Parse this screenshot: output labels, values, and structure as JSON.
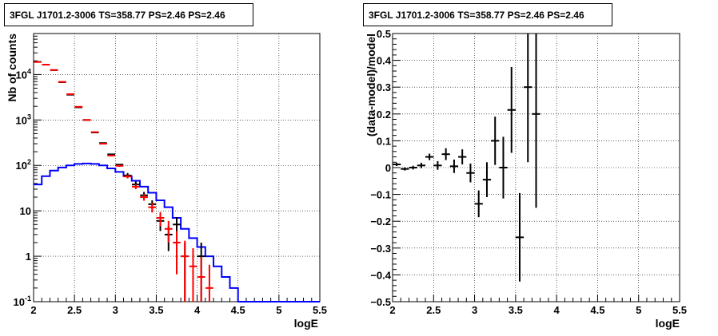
{
  "colors": {
    "data": "#000000",
    "model": "#ff0000",
    "component": "#0000ff",
    "grid": "#000000"
  },
  "chart_data": [
    {
      "type": "histogram",
      "title": "3FGL J1701.2-3006 TS=358.77 PS=2.46 PS=2.46",
      "xlabel": "logE",
      "ylabel": "Nb of counts",
      "xlim": [
        2,
        5.5
      ],
      "ylim": [
        0.1,
        80000
      ],
      "yscale": "log",
      "grid": true,
      "x_ticks": [
        "2",
        "2.5",
        "3",
        "3.5",
        "4",
        "4.5",
        "5",
        "5.5"
      ],
      "y_ticks": [
        {
          "value": 0.1,
          "label": "10^-1"
        },
        {
          "value": 1,
          "label": "1"
        },
        {
          "value": 10,
          "label": "10"
        },
        {
          "value": 100,
          "label": "10^2"
        },
        {
          "value": 1000,
          "label": "10^3"
        },
        {
          "value": 10000,
          "label": "10^4"
        }
      ],
      "bin_width": 0.1,
      "bin_low_edges": [
        2.0,
        2.1,
        2.2,
        2.3,
        2.4,
        2.5,
        2.6,
        2.7,
        2.8,
        2.9,
        3.0,
        3.1,
        3.2,
        3.3,
        3.4,
        3.5,
        3.6,
        3.7,
        3.8,
        3.9,
        4.0,
        4.1,
        4.2,
        4.3,
        4.4,
        4.5,
        4.6,
        4.7,
        4.8,
        4.9,
        5.0,
        5.1,
        5.2,
        5.3,
        5.4
      ],
      "series": [
        {
          "style": "errorbar",
          "color": "#000000",
          "values": [
            19000,
            16500,
            12500,
            6800,
            3600,
            1900,
            1000,
            530,
            310,
            175,
            104,
            60,
            38,
            22,
            14,
            6,
            3,
            5,
            1,
            0,
            1
          ],
          "errors_low": [
            0,
            0,
            0,
            0,
            0,
            0,
            0,
            0,
            0,
            0,
            0,
            8,
            6,
            4,
            3,
            2.4,
            1.7,
            2.2,
            1,
            0,
            1
          ],
          "errors_high": [
            0,
            0,
            0,
            0,
            0,
            0,
            0,
            0,
            0,
            0,
            0,
            8,
            6,
            4,
            3,
            2.4,
            1.7,
            2.2,
            1,
            0,
            1
          ]
        },
        {
          "style": "errorbar",
          "color": "#ff0000",
          "values": [
            18900,
            16500,
            12600,
            6900,
            3700,
            1950,
            1000,
            540,
            300,
            165,
            98,
            57,
            34,
            20,
            12,
            7,
            4,
            2,
            1,
            0.6,
            0.35,
            0.2
          ],
          "errors_low": [
            0,
            0,
            0,
            0,
            0,
            0,
            0,
            0,
            8,
            6,
            5,
            4.5,
            4,
            3.3,
            2.8,
            2.4,
            2,
            1.6,
            0.9,
            0.55,
            0.34,
            0.19
          ],
          "errors_high": [
            0,
            0,
            0,
            0,
            0,
            0,
            0,
            0,
            8,
            6,
            5,
            4.5,
            4,
            3.3,
            2.8,
            2.4,
            2,
            1.6,
            1.2,
            0.9,
            0.6,
            0.45
          ]
        },
        {
          "style": "step",
          "color": "#0000ff",
          "values": [
            38,
            58,
            77,
            90,
            100,
            108,
            110,
            108,
            100,
            86,
            72,
            58,
            46,
            34,
            25,
            17,
            12,
            7,
            4,
            2.5,
            1.6,
            1.0,
            0.6,
            0.35,
            0.2,
            0.1,
            0.1,
            0.1,
            0.1,
            0.1,
            0.1,
            0.1,
            0.1,
            0.1,
            0.1
          ]
        }
      ]
    },
    {
      "type": "scatter",
      "title": "3FGL J1701.2-3006 TS=358.77 PS=2.46 PS=2.46",
      "xlabel": "logE",
      "ylabel": "(data-model)/model",
      "xlim": [
        2,
        5.5
      ],
      "ylim": [
        -0.5,
        0.5
      ],
      "grid": true,
      "x_ticks": [
        "2",
        "2.5",
        "3",
        "3.5",
        "4",
        "4.5",
        "5",
        "5.5"
      ],
      "y_ticks": [
        "−0.5",
        "−0.4",
        "−0.3",
        "−0.2",
        "−0.1",
        "0",
        "0.1",
        "0.2",
        "0.3",
        "0.4",
        "0.5"
      ],
      "x_halfwidth": 0.05,
      "x": [
        2.05,
        2.15,
        2.25,
        2.35,
        2.45,
        2.55,
        2.65,
        2.75,
        2.85,
        2.95,
        3.05,
        3.15,
        3.25,
        3.35,
        3.45,
        3.55,
        3.65,
        3.75
      ],
      "y": [
        0.012,
        -0.005,
        0.0,
        0.008,
        0.04,
        0.008,
        0.05,
        0.005,
        0.04,
        -0.02,
        -0.135,
        -0.045,
        0.1,
        0.0,
        0.215,
        -0.26,
        0.3,
        0.2
      ],
      "y_err": [
        0.006,
        0.006,
        0.007,
        0.01,
        0.012,
        0.016,
        0.022,
        0.025,
        0.028,
        0.035,
        0.05,
        0.065,
        0.09,
        0.115,
        0.16,
        0.165,
        0.28,
        0.35
      ]
    }
  ]
}
